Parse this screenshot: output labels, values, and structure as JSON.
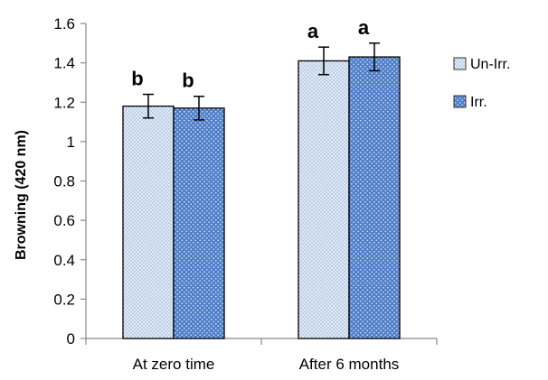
{
  "chart_data": {
    "type": "bar",
    "ylabel": "Browning (420 nm)",
    "xlabel": "",
    "categories": [
      "At zero time",
      "After 6 months"
    ],
    "ylim": [
      0,
      1.6
    ],
    "yticks": [
      0,
      0.2,
      0.4,
      0.6,
      0.8,
      1,
      1.2,
      1.4,
      1.6
    ],
    "ytick_labels": [
      "0",
      "0.2",
      "0.4",
      "0.6",
      "0.8",
      "1",
      "1.2",
      "1.4",
      "1.6"
    ],
    "series": [
      {
        "name": "Un-Irr.",
        "values": [
          1.18,
          1.41
        ],
        "errors": [
          0.06,
          0.07
        ],
        "significance": [
          "b",
          "a"
        ],
        "fill": "#e3ecf7",
        "dot": "#7f9fd0"
      },
      {
        "name": "Irr.",
        "values": [
          1.17,
          1.43
        ],
        "errors": [
          0.06,
          0.07
        ],
        "significance": [
          "b",
          "a"
        ],
        "fill": "#4f7fc8",
        "dot": "#c8d9f2"
      }
    ],
    "legend_position": "right",
    "grid": false
  }
}
